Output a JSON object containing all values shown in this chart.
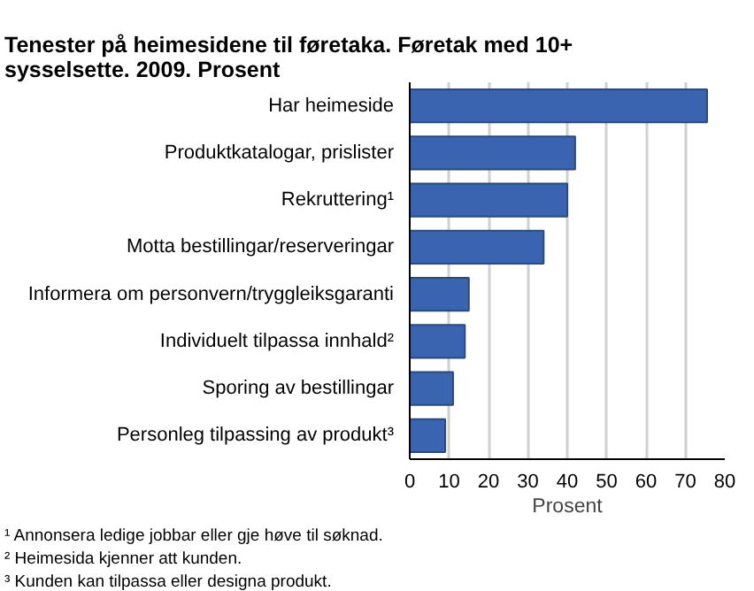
{
  "chart_data": {
    "type": "bar",
    "orientation": "horizontal",
    "title": "Tenester på heimesidene til føretaka. Føretak med 10+ sysselsette. 2009. Prosent",
    "categories": [
      "Har heimeside",
      "Produktkatalogar, prislister",
      "Rekruttering¹",
      "Motta bestillingar/reserveringar",
      "Informera om personvern/tryggleiksgaranti",
      "Individuelt tilpassa innhald²",
      "Sporing av bestillingar",
      "Personleg tilpassing av produkt³"
    ],
    "values": [
      75.5,
      42,
      40,
      34,
      15,
      14,
      11,
      9
    ],
    "color": "#3a64b0",
    "xlim": [
      0,
      80
    ],
    "xticks": [
      0,
      10,
      20,
      30,
      40,
      50,
      60,
      70,
      80
    ],
    "xlabel": "Prosent",
    "grid": "x",
    "annotations": [
      "¹ Annonsera ledige jobbar eller gje høve til søknad.",
      "² Heimesida kjenner att kunden.",
      "³ Kunden kan tilpassa eller designa produkt."
    ]
  }
}
